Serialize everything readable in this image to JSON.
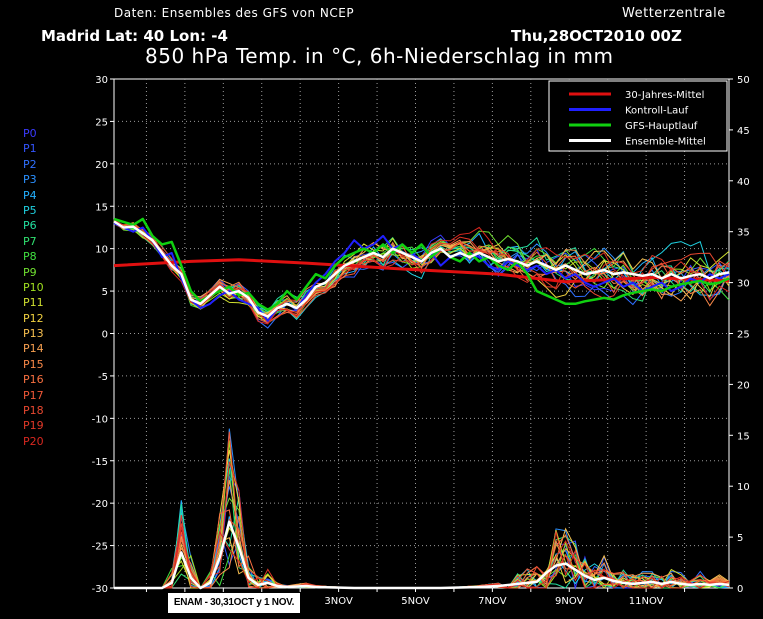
{
  "header": {
    "source": "Daten: Ensembles des GFS von NCEP",
    "brand": "Wetterzentrale",
    "location": "Madrid   Lat: 40 Lon: -4",
    "date": "Thu,28OCT2010 00Z",
    "title": "850 hPa Temp. in °C, 6h-Niederschlag in mm"
  },
  "members": [
    {
      "label": "P0",
      "color": "#3a3aff"
    },
    {
      "label": "P1",
      "color": "#3355ff"
    },
    {
      "label": "P2",
      "color": "#2f70ff"
    },
    {
      "label": "P3",
      "color": "#2a90ff"
    },
    {
      "label": "P4",
      "color": "#22b0ff"
    },
    {
      "label": "P5",
      "color": "#1fd0e0"
    },
    {
      "label": "P6",
      "color": "#22e0a0"
    },
    {
      "label": "P7",
      "color": "#30e070"
    },
    {
      "label": "P8",
      "color": "#40e040"
    },
    {
      "label": "P9",
      "color": "#70e030"
    },
    {
      "label": "P10",
      "color": "#a0e020"
    },
    {
      "label": "P11",
      "color": "#d0e030"
    },
    {
      "label": "P12",
      "color": "#f0d040"
    },
    {
      "label": "P13",
      "color": "#f8c050"
    },
    {
      "label": "P14",
      "color": "#f8a050"
    },
    {
      "label": "P15",
      "color": "#f88848"
    },
    {
      "label": "P16",
      "color": "#f87040"
    },
    {
      "label": "P17",
      "color": "#f05838"
    },
    {
      "label": "P18",
      "color": "#e84830"
    },
    {
      "label": "P19",
      "color": "#e03828"
    },
    {
      "label": "P20",
      "color": "#d82820"
    }
  ],
  "annotation": "ENAM - 30,31OCT y 1 NOV.",
  "chart_data": {
    "type": "line",
    "x_tick_labels": [
      "3NOV",
      "5NOV",
      "7NOV",
      "9NOV",
      "11NOV"
    ],
    "y_left_ticks": [
      30,
      25,
      20,
      15,
      10,
      5,
      0,
      -5,
      -10,
      -15,
      -20,
      -25,
      -30
    ],
    "y_right_ticks": [
      50,
      45,
      40,
      35,
      30,
      25,
      20,
      15,
      10,
      5,
      0
    ],
    "ylim_left": [
      -30,
      30
    ],
    "ylim_right": [
      0,
      50
    ],
    "grid": true,
    "legend_position": "top-right",
    "legend": [
      {
        "name": "30-Jahres-Mittel",
        "color": "#e01010"
      },
      {
        "name": "Kontroll-Lauf",
        "color": "#2020ff"
      },
      {
        "name": "GFS-Hauptlauf",
        "color": "#10d010"
      },
      {
        "name": "Ensemble-Mittel",
        "color": "#ffffff"
      }
    ],
    "x_steps": 64,
    "x_step_hours": 6,
    "temperature": {
      "climatology": [
        [
          0,
          8.0
        ],
        [
          8,
          8.5
        ],
        [
          13,
          8.7
        ],
        [
          20,
          8.3
        ],
        [
          30,
          7.6
        ],
        [
          40,
          7.0
        ],
        [
          47,
          6.1
        ],
        [
          56,
          6.6
        ],
        [
          64,
          6.2
        ]
      ],
      "ensemble_mean": [
        [
          0,
          13.2
        ],
        [
          1,
          12.5
        ],
        [
          2,
          12.6
        ],
        [
          4,
          11.0
        ],
        [
          5,
          9.5
        ],
        [
          6,
          8.0
        ],
        [
          7,
          7.0
        ],
        [
          8,
          4.0
        ],
        [
          9,
          3.5
        ],
        [
          10,
          4.5
        ],
        [
          11,
          5.5
        ],
        [
          12,
          4.7
        ],
        [
          13,
          5.0
        ],
        [
          14,
          4.2
        ],
        [
          15,
          2.5
        ],
        [
          16,
          2.0
        ],
        [
          17,
          3.0
        ],
        [
          18,
          3.5
        ],
        [
          19,
          3.0
        ],
        [
          20,
          4.0
        ],
        [
          21,
          5.5
        ],
        [
          22,
          6.0
        ],
        [
          23,
          7.0
        ],
        [
          24,
          8.0
        ],
        [
          25,
          8.5
        ],
        [
          26,
          9.0
        ],
        [
          27,
          9.5
        ],
        [
          28,
          9.0
        ],
        [
          29,
          10.0
        ],
        [
          30,
          9.5
        ],
        [
          31,
          9.0
        ],
        [
          32,
          8.5
        ],
        [
          33,
          9.5
        ],
        [
          34,
          10.0
        ],
        [
          35,
          9.0
        ],
        [
          36,
          9.5
        ],
        [
          37,
          9.0
        ],
        [
          38,
          9.5
        ],
        [
          39,
          9.0
        ],
        [
          40,
          8.5
        ],
        [
          41,
          8.8
        ],
        [
          42,
          8.5
        ],
        [
          43,
          8.0
        ],
        [
          44,
          8.5
        ],
        [
          45,
          8.0
        ],
        [
          46,
          7.5
        ],
        [
          47,
          8.0
        ],
        [
          48,
          7.5
        ],
        [
          49,
          7.0
        ],
        [
          50,
          7.2
        ],
        [
          51,
          7.5
        ],
        [
          52,
          7.0
        ],
        [
          53,
          7.2
        ],
        [
          54,
          7.0
        ],
        [
          55,
          6.8
        ],
        [
          56,
          7.0
        ],
        [
          57,
          6.5
        ],
        [
          58,
          7.0
        ],
        [
          59,
          6.5
        ],
        [
          60,
          6.8
        ],
        [
          61,
          7.0
        ],
        [
          62,
          6.5
        ],
        [
          63,
          7.0
        ],
        [
          64,
          7.2
        ]
      ],
      "gfs_main": [
        [
          0,
          13.5
        ],
        [
          2,
          12.8
        ],
        [
          3,
          13.5
        ],
        [
          4,
          11.5
        ],
        [
          5,
          10.5
        ],
        [
          6,
          10.8
        ],
        [
          7,
          8.0
        ],
        [
          8,
          5.0
        ],
        [
          9,
          3.8
        ],
        [
          10,
          4.5
        ],
        [
          11,
          5.0
        ],
        [
          12,
          5.5
        ],
        [
          13,
          4.5
        ],
        [
          14,
          4.8
        ],
        [
          15,
          3.5
        ],
        [
          16,
          2.8
        ],
        [
          17,
          3.5
        ],
        [
          18,
          5.0
        ],
        [
          19,
          4.0
        ],
        [
          20,
          5.5
        ],
        [
          21,
          7.0
        ],
        [
          22,
          6.5
        ],
        [
          23,
          8.0
        ],
        [
          24,
          9.0
        ],
        [
          25,
          9.5
        ],
        [
          26,
          10.0
        ],
        [
          27,
          9.5
        ],
        [
          28,
          10.5
        ],
        [
          29,
          9.5
        ],
        [
          30,
          10.5
        ],
        [
          31,
          9.5
        ],
        [
          32,
          10.5
        ],
        [
          33,
          9.0
        ],
        [
          34,
          10.0
        ],
        [
          35,
          9.0
        ],
        [
          36,
          8.5
        ],
        [
          37,
          9.5
        ],
        [
          38,
          8.5
        ],
        [
          39,
          9.0
        ],
        [
          40,
          8.0
        ],
        [
          41,
          7.5
        ],
        [
          42,
          8.5
        ],
        [
          43,
          7.0
        ],
        [
          44,
          5.0
        ],
        [
          45,
          4.5
        ],
        [
          46,
          4.0
        ],
        [
          47,
          3.5
        ],
        [
          48,
          3.5
        ],
        [
          49,
          3.8
        ],
        [
          50,
          4.0
        ],
        [
          51,
          4.2
        ],
        [
          52,
          4.0
        ],
        [
          53,
          4.5
        ],
        [
          54,
          4.8
        ],
        [
          55,
          5.0
        ],
        [
          56,
          5.2
        ],
        [
          57,
          5.0
        ],
        [
          58,
          5.5
        ],
        [
          59,
          5.8
        ],
        [
          60,
          6.0
        ],
        [
          61,
          6.2
        ],
        [
          62,
          5.8
        ],
        [
          63,
          6.0
        ],
        [
          64,
          6.5
        ]
      ],
      "control_run": [
        [
          0,
          13.0
        ],
        [
          2,
          12.0
        ],
        [
          3,
          12.5
        ],
        [
          4,
          11.0
        ],
        [
          5,
          9.0
        ],
        [
          6,
          9.5
        ],
        [
          7,
          6.5
        ],
        [
          8,
          4.0
        ],
        [
          9,
          3.0
        ],
        [
          10,
          3.5
        ],
        [
          11,
          4.5
        ],
        [
          12,
          5.0
        ],
        [
          13,
          4.0
        ],
        [
          14,
          3.5
        ],
        [
          15,
          3.0
        ],
        [
          16,
          1.5
        ],
        [
          17,
          3.0
        ],
        [
          18,
          3.5
        ],
        [
          19,
          3.0
        ],
        [
          20,
          4.5
        ],
        [
          21,
          6.0
        ],
        [
          22,
          7.0
        ],
        [
          23,
          8.5
        ],
        [
          24,
          9.5
        ],
        [
          25,
          11.0
        ],
        [
          26,
          10.0
        ],
        [
          27,
          10.5
        ],
        [
          28,
          11.5
        ],
        [
          29,
          10.0
        ],
        [
          30,
          10.5
        ],
        [
          31,
          9.5
        ],
        [
          32,
          8.5
        ],
        [
          33,
          9.5
        ],
        [
          34,
          8.0
        ],
        [
          35,
          9.0
        ],
        [
          36,
          8.5
        ],
        [
          37,
          9.5
        ],
        [
          38,
          9.0
        ],
        [
          39,
          8.0
        ],
        [
          40,
          7.5
        ],
        [
          41,
          8.5
        ],
        [
          42,
          8.0
        ],
        [
          43,
          7.5
        ],
        [
          44,
          8.0
        ],
        [
          45,
          7.0
        ],
        [
          46,
          7.5
        ],
        [
          47,
          6.5
        ],
        [
          48,
          7.0
        ],
        [
          49,
          6.0
        ],
        [
          50,
          5.5
        ],
        [
          51,
          6.0
        ],
        [
          52,
          6.5
        ],
        [
          53,
          5.5
        ],
        [
          54,
          6.0
        ],
        [
          55,
          5.0
        ],
        [
          56,
          5.5
        ],
        [
          57,
          6.0
        ],
        [
          58,
          5.0
        ],
        [
          59,
          5.5
        ],
        [
          60,
          6.5
        ],
        [
          61,
          6.0
        ],
        [
          62,
          7.0
        ],
        [
          63,
          6.5
        ],
        [
          64,
          7.0
        ]
      ]
    },
    "precipitation": {
      "ensemble_mean": [
        [
          0,
          0
        ],
        [
          5,
          0
        ],
        [
          6,
          0.5
        ],
        [
          7,
          3.5
        ],
        [
          8,
          1.0
        ],
        [
          9,
          0
        ],
        [
          10,
          0.5
        ],
        [
          11,
          3.0
        ],
        [
          12,
          6.5
        ],
        [
          13,
          4.0
        ],
        [
          14,
          1.0
        ],
        [
          15,
          0.3
        ],
        [
          16,
          0.5
        ],
        [
          17,
          0.2
        ],
        [
          18,
          0.1
        ],
        [
          20,
          0.2
        ],
        [
          21,
          0.1
        ],
        [
          25,
          0
        ],
        [
          34,
          0
        ],
        [
          38,
          0.1
        ],
        [
          40,
          0.2
        ],
        [
          42,
          0.4
        ],
        [
          44,
          0.6
        ],
        [
          45,
          1.5
        ],
        [
          46,
          2.2
        ],
        [
          47,
          2.4
        ],
        [
          48,
          1.8
        ],
        [
          49,
          1.2
        ],
        [
          50,
          0.8
        ],
        [
          51,
          1.0
        ],
        [
          52,
          0.7
        ],
        [
          53,
          0.5
        ],
        [
          54,
          0.4
        ],
        [
          55,
          0.5
        ],
        [
          56,
          0.6
        ],
        [
          57,
          0.4
        ],
        [
          58,
          0.6
        ],
        [
          59,
          0.4
        ],
        [
          60,
          0.3
        ],
        [
          61,
          0.4
        ],
        [
          62,
          0.3
        ],
        [
          63,
          0.4
        ],
        [
          64,
          0.3
        ]
      ]
    }
  }
}
